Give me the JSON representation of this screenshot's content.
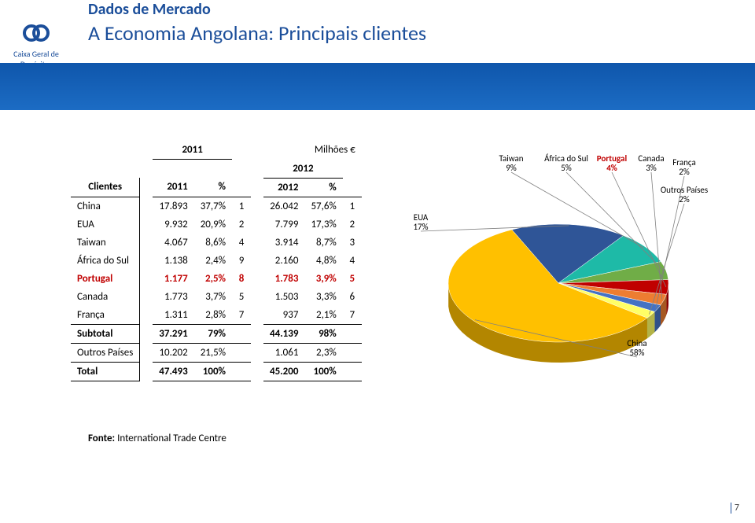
{
  "header": {
    "subtitle": "Dados de Mercado",
    "title": "A Economia Angolana: Principais clientes",
    "logo_text": "Caixa Geral de Depósitos"
  },
  "table": {
    "unit_label": "Milhões €",
    "col_clientes": "Clientes",
    "year1": "2011",
    "year2": "2012",
    "col_y1a": "2011",
    "col_y1b": "%",
    "col_y2a": "2012",
    "col_y2b": "%",
    "rows": [
      {
        "label": "China",
        "v1": "17.893",
        "p1": "37,7%",
        "r1": "1",
        "v2": "26.042",
        "p2": "57,6%",
        "r2": "1",
        "red": false
      },
      {
        "label": "EUA",
        "v1": "9.932",
        "p1": "20,9%",
        "r1": "2",
        "v2": "7.799",
        "p2": "17,3%",
        "r2": "2",
        "red": false
      },
      {
        "label": "Taiwan",
        "v1": "4.067",
        "p1": "8,6%",
        "r1": "4",
        "v2": "3.914",
        "p2": "8,7%",
        "r2": "3",
        "red": false
      },
      {
        "label": "África do Sul",
        "v1": "1.138",
        "p1": "2,4%",
        "r1": "9",
        "v2": "2.160",
        "p2": "4,8%",
        "r2": "4",
        "red": false
      },
      {
        "label": "Portugal",
        "v1": "1.177",
        "p1": "2,5%",
        "r1": "8",
        "v2": "1.783",
        "p2": "3,9%",
        "r2": "5",
        "red": true
      },
      {
        "label": "Canada",
        "v1": "1.773",
        "p1": "3,7%",
        "r1": "5",
        "v2": "1.503",
        "p2": "3,3%",
        "r2": "6",
        "red": false
      },
      {
        "label": "França",
        "v1": "1.311",
        "p1": "2,8%",
        "r1": "7",
        "v2": "937",
        "p2": "2,1%",
        "r2": "7",
        "red": false
      }
    ],
    "subtotal": {
      "label": "Subtotal",
      "v1": "37.291",
      "p1": "79%",
      "v2": "44.139",
      "p2": "98%"
    },
    "outros": {
      "label": "Outros Países",
      "v1": "10.202",
      "p1": "21,5%",
      "v2": "1.061",
      "p2": "2,3%"
    },
    "total": {
      "label": "Total",
      "v1": "47.493",
      "p1": "100%",
      "v2": "45.200",
      "p2": "100%"
    }
  },
  "pie": {
    "type": "pie",
    "tilt": "3d",
    "background": "#ffffff",
    "slices": [
      {
        "label": "China",
        "pct": "58%",
        "value": 58,
        "color": "#ffc000"
      },
      {
        "label": "EUA",
        "pct": "17%",
        "value": 17,
        "color": "#2f5597"
      },
      {
        "label": "Taiwan",
        "pct": "9%",
        "value": 9,
        "color": "#1ebaa7"
      },
      {
        "label": "África do Sul",
        "pct": "5%",
        "value": 5,
        "color": "#70ad47"
      },
      {
        "label": "Portugal",
        "pct": "4%",
        "value": 4,
        "color": "#c00000"
      },
      {
        "label": "Canada",
        "pct": "3%",
        "value": 3,
        "color": "#ed7d31"
      },
      {
        "label": "França",
        "pct": "2%",
        "value": 2,
        "color": "#4472c4"
      },
      {
        "label": "Outros Países",
        "pct": "2%",
        "value": 2,
        "color": "#ffff66"
      }
    ],
    "label_fontsize": 11,
    "label_color": "#000000",
    "leader_line_color": "#808080"
  },
  "source": {
    "prefix": "Fonte:",
    "text": " International Trade Centre"
  },
  "footer": {
    "page": "7"
  },
  "colors": {
    "brand": "#1b4e9a",
    "band_start": "#0f56ab",
    "band_end": "#1c6cc4",
    "red": "#c00000"
  }
}
